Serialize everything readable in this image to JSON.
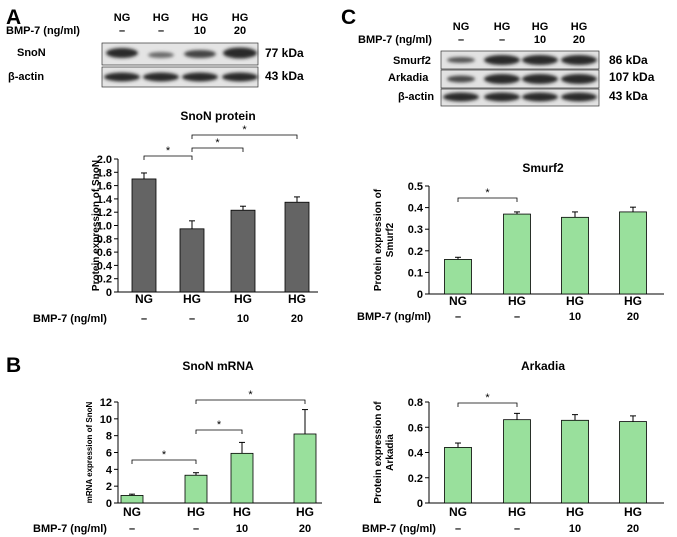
{
  "panels": {
    "A": "A",
    "B": "B",
    "C": "C"
  },
  "blot_A": {
    "lanes": [
      "NG",
      "HG",
      "HG",
      "HG"
    ],
    "bmp_label": "BMP-7 (ng/ml)",
    "bmp": [
      "–",
      "–",
      "10",
      "20"
    ],
    "rows": [
      {
        "label": "SnoN",
        "kda": "77 kDa"
      },
      {
        "label": "β-actin",
        "kda": "43 kDa"
      }
    ]
  },
  "blot_C": {
    "lanes": [
      "NG",
      "HG",
      "HG",
      "HG"
    ],
    "bmp_label": "BMP-7 (ng/ml)",
    "bmp": [
      "–",
      "–",
      "10",
      "20"
    ],
    "rows": [
      {
        "label": "Smurf2",
        "kda": "86 kDa"
      },
      {
        "label": "Arkadia",
        "kda": "107 kDa"
      },
      {
        "label": "β-actin",
        "kda": "43 kDa"
      }
    ]
  },
  "chart_data": [
    {
      "id": "snon_protein",
      "type": "bar",
      "title": "SnoN protein",
      "ylabel": "Protein expression of SnoN",
      "xlabel": "",
      "categories": [
        "NG",
        "HG",
        "HG",
        "HG"
      ],
      "bmp_label": "BMP-7  (ng/ml)",
      "bmp": [
        "–",
        "–",
        "10",
        "20"
      ],
      "values": [
        1.7,
        0.95,
        1.23,
        1.35
      ],
      "errors": [
        0.09,
        0.12,
        0.06,
        0.08
      ],
      "ylim": [
        0,
        2.0
      ],
      "yticks": [
        "0",
        "0.2",
        "0.4",
        "0.6",
        "0.8",
        "1.0",
        "1.2",
        "1.4",
        "1.6",
        "1.8",
        "2.0"
      ],
      "grid": false,
      "bar_color": "#646464",
      "annotations": [
        {
          "from": 0,
          "to": 1,
          "label": "*"
        },
        {
          "from": 1,
          "to": 2,
          "label": "*"
        },
        {
          "from": 1,
          "to": 3,
          "label": "*"
        }
      ]
    },
    {
      "id": "snon_mrna",
      "type": "bar",
      "title": "SnoN mRNA",
      "ylabel": "mRNA expression of SnoN",
      "xlabel": "",
      "categories": [
        "NG",
        "HG",
        "HG",
        "HG"
      ],
      "bmp_label": "BMP-7  (ng/ml)",
      "bmp": [
        "–",
        "–",
        "10",
        "20"
      ],
      "values": [
        0.9,
        3.3,
        5.9,
        8.2
      ],
      "errors": [
        0.15,
        0.3,
        1.3,
        2.9
      ],
      "ylim": [
        0,
        12
      ],
      "yticks": [
        "0",
        "2",
        "4",
        "6",
        "8",
        "10",
        "12"
      ],
      "grid": false,
      "bar_color": "#99e09c",
      "annotations": [
        {
          "from": 0,
          "to": 1,
          "label": "*"
        },
        {
          "from": 1,
          "to": 2,
          "label": "*"
        },
        {
          "from": 1,
          "to": 3,
          "label": "*"
        }
      ]
    },
    {
      "id": "smurf2",
      "type": "bar",
      "title": "Smurf2",
      "ylabel": "Protein expression of Smurf2",
      "xlabel": "",
      "categories": [
        "NG",
        "HG",
        "HG",
        "HG"
      ],
      "bmp_label": "BMP-7  (ng/ml)",
      "bmp": [
        "–",
        "–",
        "10",
        "20"
      ],
      "values": [
        0.16,
        0.37,
        0.355,
        0.38
      ],
      "errors": [
        0.01,
        0.01,
        0.025,
        0.022
      ],
      "ylim": [
        0,
        0.5
      ],
      "yticks": [
        "0",
        "0.1",
        "0.2",
        "0.3",
        "0.4",
        "0.5"
      ],
      "grid": false,
      "bar_color": "#99e09c",
      "annotations": [
        {
          "from": 0,
          "to": 1,
          "label": "*"
        }
      ]
    },
    {
      "id": "arkadia",
      "type": "bar",
      "title": "Arkadia",
      "ylabel": "Protein expression of Arkadia",
      "xlabel": "",
      "categories": [
        "NG",
        "HG",
        "HG",
        "HG"
      ],
      "bmp_label": "BMP-7  (ng/ml)",
      "bmp": [
        "–",
        "–",
        "10",
        "20"
      ],
      "values": [
        0.44,
        0.66,
        0.655,
        0.645
      ],
      "errors": [
        0.035,
        0.05,
        0.045,
        0.045
      ],
      "ylim": [
        0,
        0.8
      ],
      "yticks": [
        "0",
        "0.2",
        "0.4",
        "0.6",
        "0.8"
      ],
      "grid": false,
      "bar_color": "#99e09c",
      "annotations": [
        {
          "from": 0,
          "to": 1,
          "label": "*"
        }
      ]
    }
  ]
}
